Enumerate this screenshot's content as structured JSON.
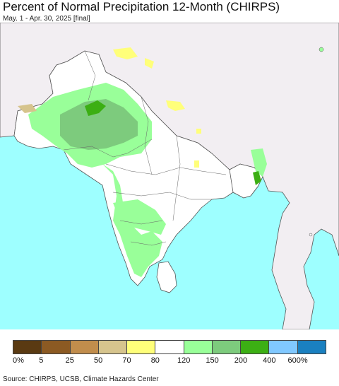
{
  "title": "Percent of Normal Precipitation 12-Month (CHIRPS)",
  "subtitle": "May. 1 - Apr. 30, 2025 [final]",
  "source": "Source: CHIRPS, UCSB, Climate Hazards Center",
  "colors": {
    "ocean": "#9effff",
    "land_outside": "#f2eef2",
    "normal": "#ffffff",
    "boundary": "#555555"
  },
  "legend": {
    "colors": [
      "#5a3a12",
      "#8c5a23",
      "#c18d4c",
      "#d6c48d",
      "#ffff7a",
      "#ffffff",
      "#99ff99",
      "#7dcb7d",
      "#3caf14",
      "#80c8ff",
      "#1a80c0"
    ],
    "labels": [
      "0%",
      "5",
      "25",
      "50",
      "70",
      "80",
      "120",
      "150",
      "200",
      "400",
      "600%"
    ]
  }
}
